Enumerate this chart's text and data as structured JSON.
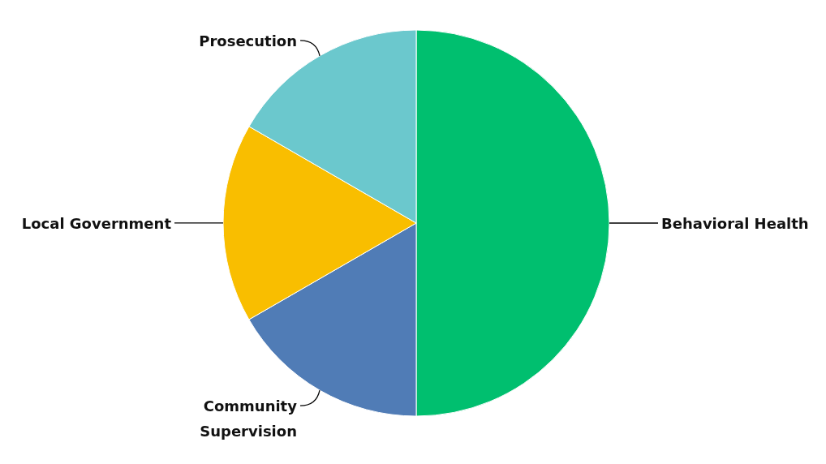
{
  "chart_data": {
    "type": "pie",
    "categories": [
      "Behavioral Health",
      "Community Supervision",
      "Local Government",
      "Prosecution"
    ],
    "values": [
      50,
      16.67,
      16.67,
      16.66
    ],
    "colors": [
      "#00bf6f",
      "#507cb6",
      "#f9be00",
      "#6bc8cd"
    ],
    "legend": false
  }
}
